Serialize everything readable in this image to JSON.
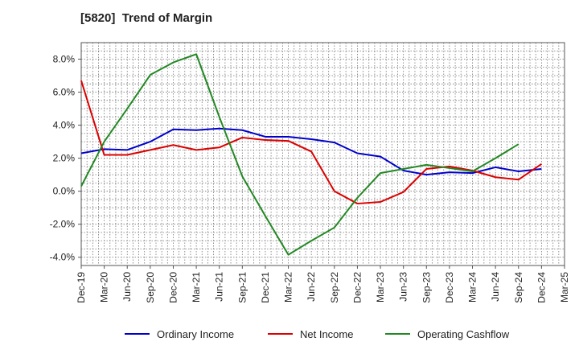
{
  "chart_data": {
    "type": "line",
    "title": "[5820]  Trend of Margin",
    "x": [
      "Dec-19",
      "Mar-20",
      "Jun-20",
      "Sep-20",
      "Dec-20",
      "Mar-21",
      "Jun-21",
      "Sep-21",
      "Dec-21",
      "Mar-22",
      "Jun-22",
      "Sep-22",
      "Dec-22",
      "Mar-23",
      "Jun-23",
      "Sep-23",
      "Dec-23",
      "Mar-24",
      "Jun-24",
      "Sep-24",
      "Dec-24",
      "Mar-25"
    ],
    "ylim": [
      -4.5,
      9.0
    ],
    "yticks": [
      8.0,
      6.0,
      4.0,
      2.0,
      0.0,
      -2.0,
      -4.0
    ],
    "ytick_labels": [
      "8.0%",
      "6.0%",
      "4.0%",
      "2.0%",
      "0.0%",
      "-2.0%",
      "-4.0%"
    ],
    "grid": true,
    "legend_position": "bottom",
    "series": [
      {
        "name": "Ordinary Income",
        "color": "#0000cc",
        "values": [
          2.3,
          2.55,
          2.5,
          3.0,
          3.75,
          3.7,
          3.8,
          3.7,
          3.3,
          3.3,
          3.15,
          2.95,
          2.3,
          2.1,
          1.25,
          1.0,
          1.15,
          1.1,
          1.45,
          1.2,
          1.35,
          null
        ]
      },
      {
        "name": "Net Income",
        "color": "#dd0000",
        "values": [
          6.7,
          2.2,
          2.2,
          2.5,
          2.8,
          2.5,
          2.65,
          3.25,
          3.1,
          3.05,
          2.4,
          0.0,
          -0.75,
          -0.65,
          -0.05,
          1.35,
          1.5,
          1.25,
          0.85,
          0.7,
          1.65,
          null
        ]
      },
      {
        "name": "Operating Cashflow",
        "color": "#228822",
        "values": [
          0.3,
          3.0,
          5.0,
          7.05,
          7.8,
          8.3,
          4.5,
          0.9,
          -1.5,
          -3.85,
          -3.0,
          -2.2,
          -0.4,
          1.1,
          1.35,
          1.6,
          1.4,
          1.2,
          2.0,
          2.85,
          null,
          null
        ]
      }
    ]
  }
}
